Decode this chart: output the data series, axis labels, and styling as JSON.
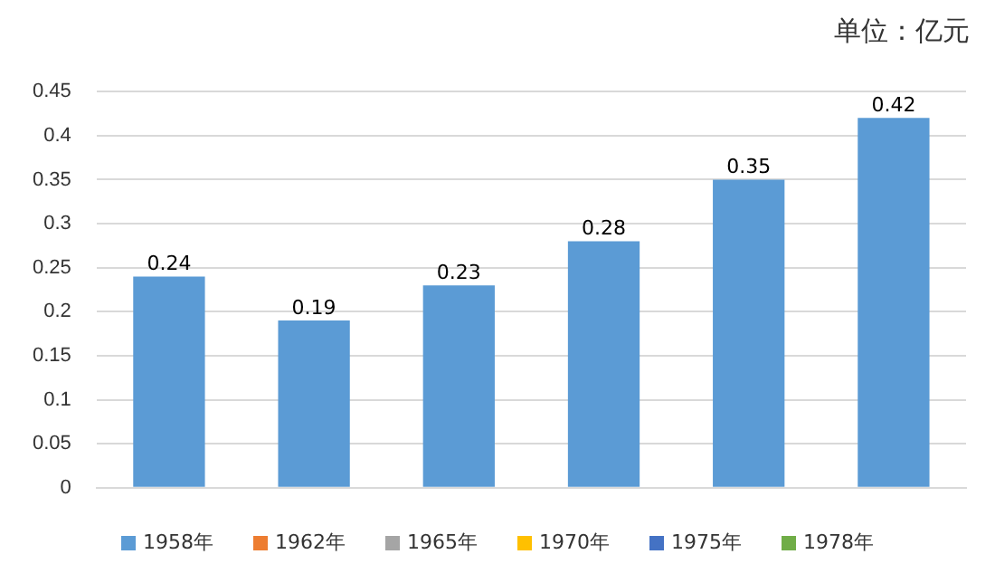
{
  "chart_data": {
    "type": "bar",
    "categories": [
      "1958年",
      "1962年",
      "1965年",
      "1970年",
      "1975年",
      "1978年"
    ],
    "values": [
      0.24,
      0.19,
      0.23,
      0.28,
      0.35,
      0.42
    ],
    "color": "#5b9bd5",
    "ylim": [
      0,
      0.45
    ],
    "yticks": [
      0,
      0.05,
      0.1,
      0.15,
      0.2,
      0.25,
      0.3,
      0.35,
      0.4,
      0.45
    ],
    "grid": "y",
    "tick_labels": "y",
    "data_labels": true,
    "annotations": [
      "单位：亿元"
    ]
  }
}
